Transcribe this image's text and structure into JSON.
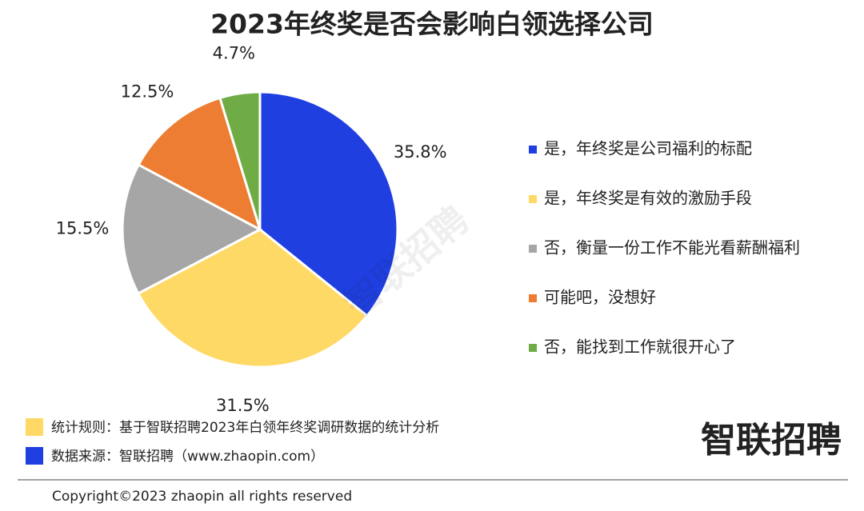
{
  "chart_data": {
    "type": "pie",
    "title": "2023年终奖是否会影响白领选择公司",
    "categories": [
      "是，年终奖是公司福利的标配",
      "是，年终奖是有效的激励手段",
      "否，衡量一份工作不能光看薪酬福利",
      "可能吧，没想好",
      "否，能找到工作就很开心了"
    ],
    "values": [
      35.8,
      31.5,
      15.5,
      12.5,
      4.7
    ],
    "value_labels": [
      "35.8%",
      "31.5%",
      "15.5%",
      "12.5%",
      "4.7%"
    ],
    "colors": [
      "#1f3fe0",
      "#fed966",
      "#a6a6a6",
      "#ec7d32",
      "#6fac46"
    ],
    "legend": "right"
  },
  "notes": [
    "统计规则：基于智联招聘2023年白领年终奖调研数据的统计分析",
    "数据来源：智联招聘（www.zhaopin.com）"
  ],
  "logo": "智联招聘",
  "watermark": "智联招聘",
  "copyright": "Copyright©2023 zhaopin all rights reserved"
}
